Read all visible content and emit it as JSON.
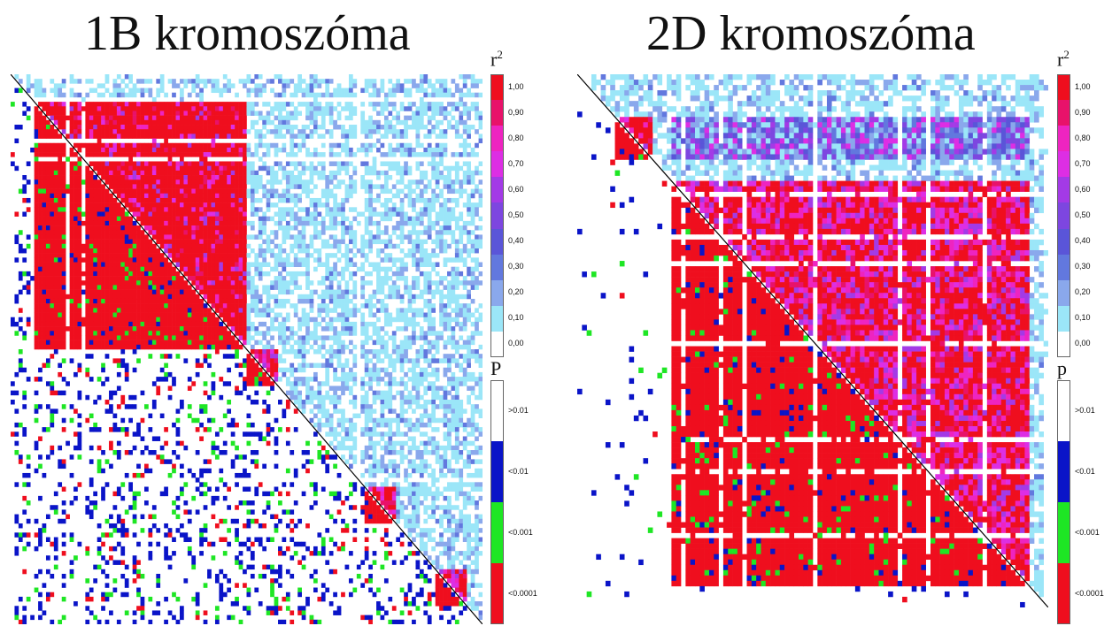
{
  "chart_data": [
    {
      "type": "heatmap",
      "title": "1B kromoszóma",
      "r2_legend": {
        "title": "r",
        "title_sup": "2",
        "ticks": [
          "1,00",
          "0,90",
          "0,80",
          "0,70",
          "0,60",
          "0,50",
          "0,40",
          "0,30",
          "0,20",
          "0,10",
          "0,00"
        ],
        "colors": [
          "#ef0e1e",
          "#e8126a",
          "#ee24c0",
          "#dd2ee4",
          "#a33ae6",
          "#7d46e0",
          "#5a55d8",
          "#6278de",
          "#8aa8ec",
          "#9be6f8",
          "#ffffff"
        ]
      },
      "p_legend": {
        "title": "P",
        "ticks": [
          ">0.01",
          "<0.01",
          "<0.001",
          "<0.0001"
        ],
        "colors": [
          "#ffffff",
          "#0a14c8",
          "#1ee624",
          "#ef0e1e"
        ]
      },
      "markers": 200
    },
    {
      "type": "heatmap",
      "title": "2D kromoszóma",
      "r2_legend": {
        "title": "r",
        "title_sup": "2",
        "ticks": [
          "1,00",
          "0,90",
          "0,80",
          "0,70",
          "0,60",
          "0,50",
          "0,40",
          "0,30",
          "0,20",
          "0,10",
          "0,00"
        ],
        "colors": [
          "#ef0e1e",
          "#e8126a",
          "#ee24c0",
          "#dd2ee4",
          "#a33ae6",
          "#7d46e0",
          "#5a55d8",
          "#6278de",
          "#8aa8ec",
          "#9be6f8",
          "#ffffff"
        ]
      },
      "p_legend": {
        "title": "p",
        "ticks": [
          ">0.01",
          "<0.01",
          "<0.001",
          "<0.0001"
        ],
        "colors": [
          "#ffffff",
          "#0a14c8",
          "#1ee624",
          "#ef0e1e"
        ]
      },
      "markers": 110
    }
  ]
}
